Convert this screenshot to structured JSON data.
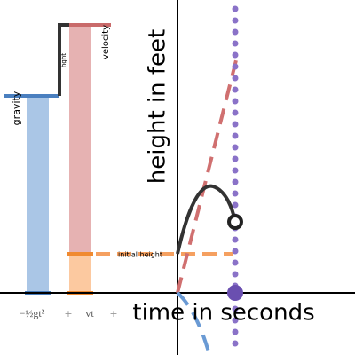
{
  "labels": {
    "gravity": "gravity",
    "velocity": "velocity",
    "height": "hght",
    "initial_height": "initial height",
    "x_axis": "time in seconds",
    "y_axis": "height in feet"
  },
  "formula": {
    "terms": [
      "−½gt²",
      "+",
      "vt",
      "+"
    ]
  }
}
